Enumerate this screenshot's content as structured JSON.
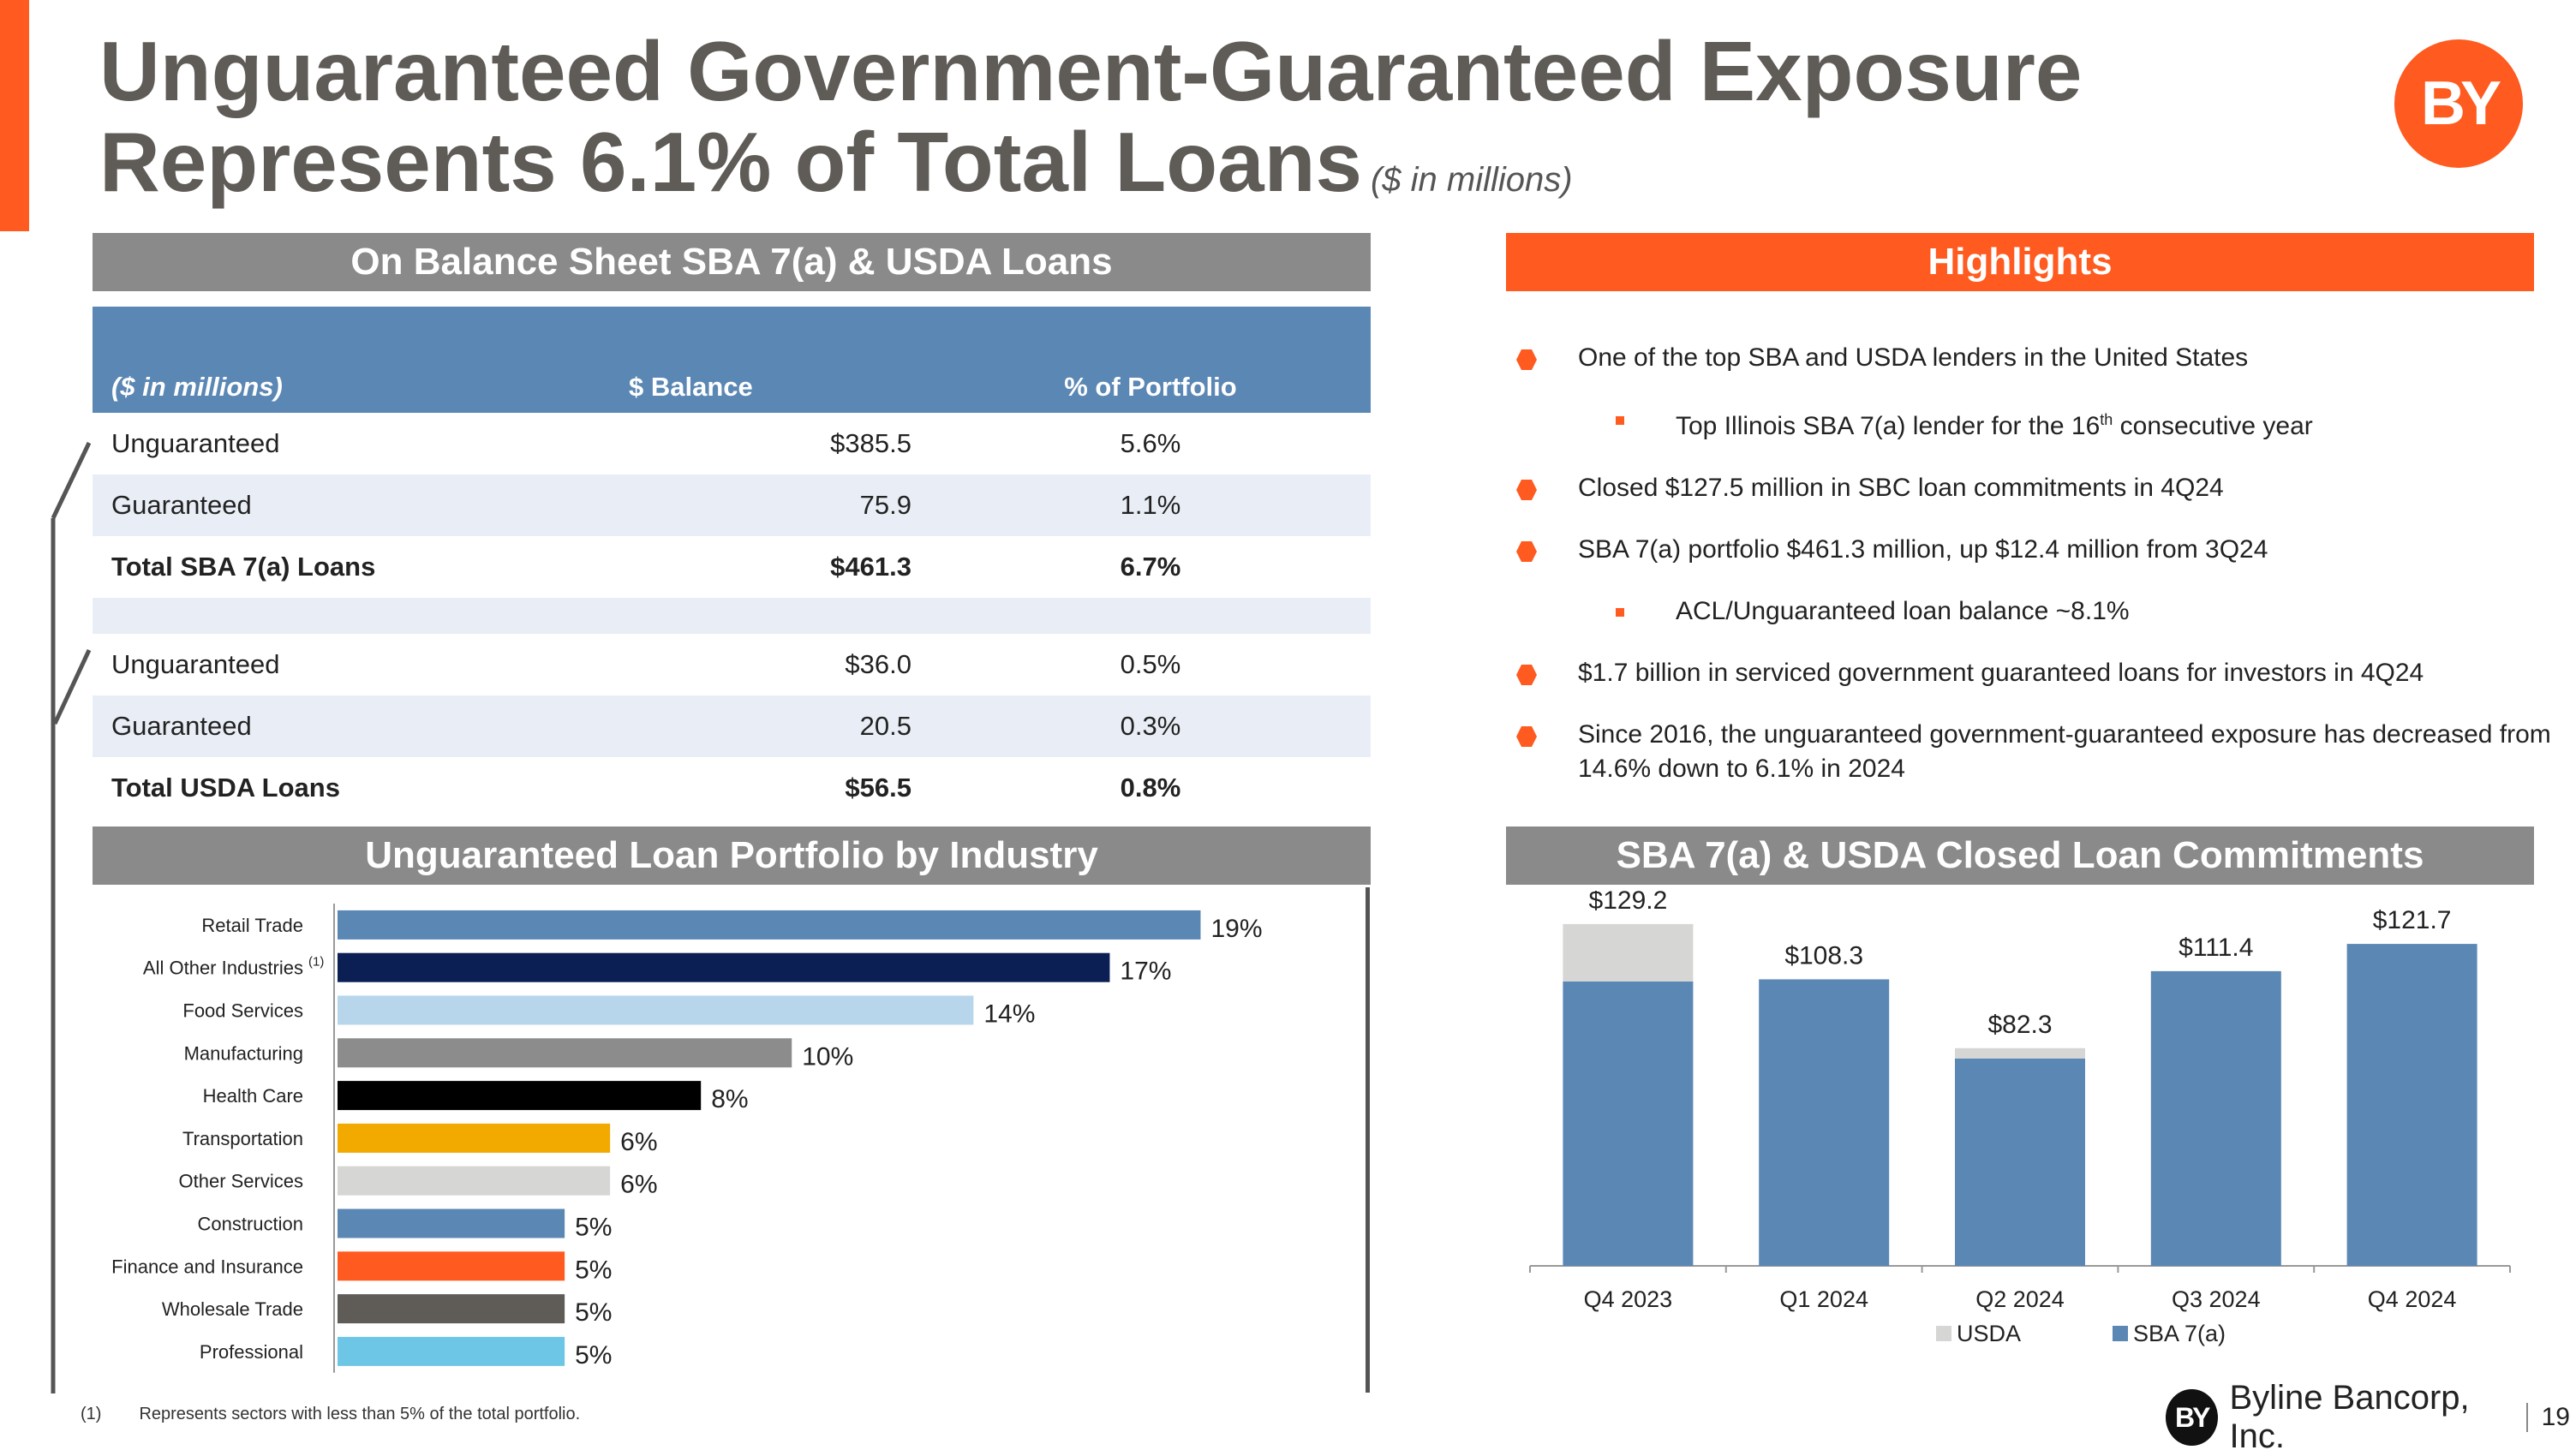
{
  "title": {
    "line1": "Unguaranteed Government-Guaranteed Exposure",
    "line2": "Represents 6.1% of Total Loans",
    "unit_note": "($ in millions)"
  },
  "logo_text": "BY",
  "balance_sheet": {
    "header": "On Balance Sheet SBA 7(a) & USDA Loans",
    "columns": [
      "($ in millions)",
      "$ Balance",
      "% of Portfolio"
    ],
    "rows": [
      {
        "label": "Unguaranteed",
        "balance": "$385.5",
        "pct": "5.6%"
      },
      {
        "label": "Guaranteed",
        "balance": "75.9",
        "pct": "1.1%"
      },
      {
        "label": "Total SBA 7(a) Loans",
        "balance": "$461.3",
        "pct": "6.7%"
      },
      {
        "label": "Unguaranteed",
        "balance": "$36.0",
        "pct": "0.5%"
      },
      {
        "label": "Guaranteed",
        "balance": "20.5",
        "pct": "0.3%"
      },
      {
        "label": "Total USDA Loans",
        "balance": "$56.5",
        "pct": "0.8%"
      }
    ]
  },
  "highlights": {
    "header": "Highlights",
    "items": [
      {
        "text": "One of the top SBA and USDA lenders in the United States"
      },
      {
        "pre": "Top Illinois SBA 7(a) lender for the 16",
        "sup": "th",
        "post": " consecutive year"
      },
      {
        "text": "Closed $127.5 million in SBC loan commitments in 4Q24"
      },
      {
        "text": "SBA 7(a) portfolio $461.3 million, up $12.4 million from 3Q24"
      },
      {
        "text": "ACL/Unguaranteed loan balance ~8.1%"
      },
      {
        "text": "$1.7 billion in serviced government guaranteed loans for investors in 4Q24"
      },
      {
        "text": "Since 2016, the unguaranteed government-guaranteed exposure has decreased from 14.6% down to 6.1% in 2024"
      }
    ]
  },
  "industry_header": "Unguaranteed Loan Portfolio by Industry",
  "commitments_header": "SBA 7(a) & USDA Closed Loan Commitments",
  "chart_data": [
    {
      "type": "bar",
      "orientation": "horizontal",
      "categories": [
        "Retail Trade",
        "All Other Industries",
        "Food Services",
        "Manufacturing",
        "Health Care",
        "Transportation",
        "Other Services",
        "Construction",
        "Finance and Insurance",
        "Wholesale Trade",
        "Professional"
      ],
      "category_notes": [
        "",
        "(1)",
        "",
        "",
        "",
        "",
        "",
        "",
        "",
        "",
        ""
      ],
      "values": [
        19,
        17,
        14,
        10,
        8,
        6,
        6,
        5,
        5,
        5,
        5
      ],
      "labels": [
        "19%",
        "17%",
        "14%",
        "10%",
        "8%",
        "6%",
        "6%",
        "5%",
        "5%",
        "5%",
        "5%"
      ],
      "colors": [
        "#5b87b4",
        "#0b1f55",
        "#b8d6eb",
        "#8c8c8c",
        "#000000",
        "#f2a900",
        "#d6d6d4",
        "#5b87b4",
        "#ff5a1f",
        "#5f5c58",
        "#6ec6e6"
      ],
      "xlim": [
        0,
        20
      ]
    },
    {
      "type": "bar",
      "stacked": true,
      "categories": [
        "Q4 2023",
        "Q1 2024",
        "Q2 2024",
        "Q3 2024",
        "Q4 2024"
      ],
      "series": [
        {
          "name": "USDA",
          "color": "#d6d6d4",
          "values": [
            21.7,
            0,
            3.9,
            0,
            0
          ]
        },
        {
          "name": "SBA 7(a)",
          "color": "#5b87b4",
          "values": [
            107.5,
            108.3,
            78.4,
            111.4,
            121.7
          ]
        }
      ],
      "totals": [
        "$129.2",
        "$108.3",
        "$82.3",
        "$111.4",
        "$121.7"
      ],
      "ylim": [
        0,
        140
      ],
      "legend": "bottom"
    }
  ],
  "footnote": {
    "mark": "(1)",
    "text": "Represents sectors with less than 5% of the total portfolio."
  },
  "brand": {
    "name": "Byline Bancorp, Inc.",
    "page": "19"
  }
}
